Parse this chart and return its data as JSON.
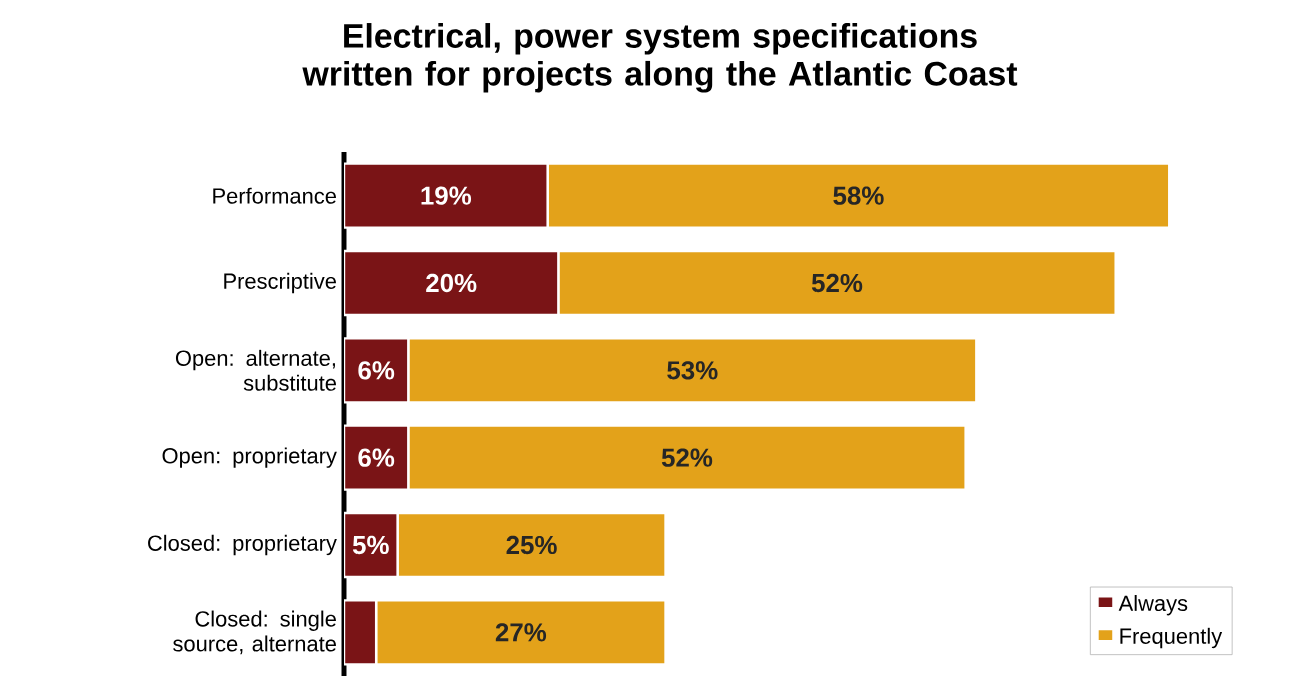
{
  "chart_data": {
    "type": "bar",
    "orientation": "horizontal",
    "stacked": true,
    "title": "Electrical, power system specifications written for projects along the Atlantic Coast",
    "categories": [
      "Performance",
      "Prescriptive",
      "Open: alternate, substitute",
      "Open: proprietary",
      "Closed: proprietary",
      "Closed: single source, alternate"
    ],
    "series": [
      {
        "name": "Always",
        "color": "#7a1416",
        "values": [
          19,
          20,
          6,
          6,
          5,
          3
        ],
        "value_labels": [
          "19%",
          "20%",
          "6%",
          "6%",
          "5%",
          null
        ]
      },
      {
        "name": "Frequently",
        "color": "#e3a21a",
        "values": [
          58,
          52,
          53,
          52,
          25,
          27
        ],
        "value_labels": [
          "58%",
          "52%",
          "53%",
          "52%",
          "25%",
          "27%"
        ]
      }
    ],
    "legend": "bottom right",
    "tick_labels": "y"
  }
}
